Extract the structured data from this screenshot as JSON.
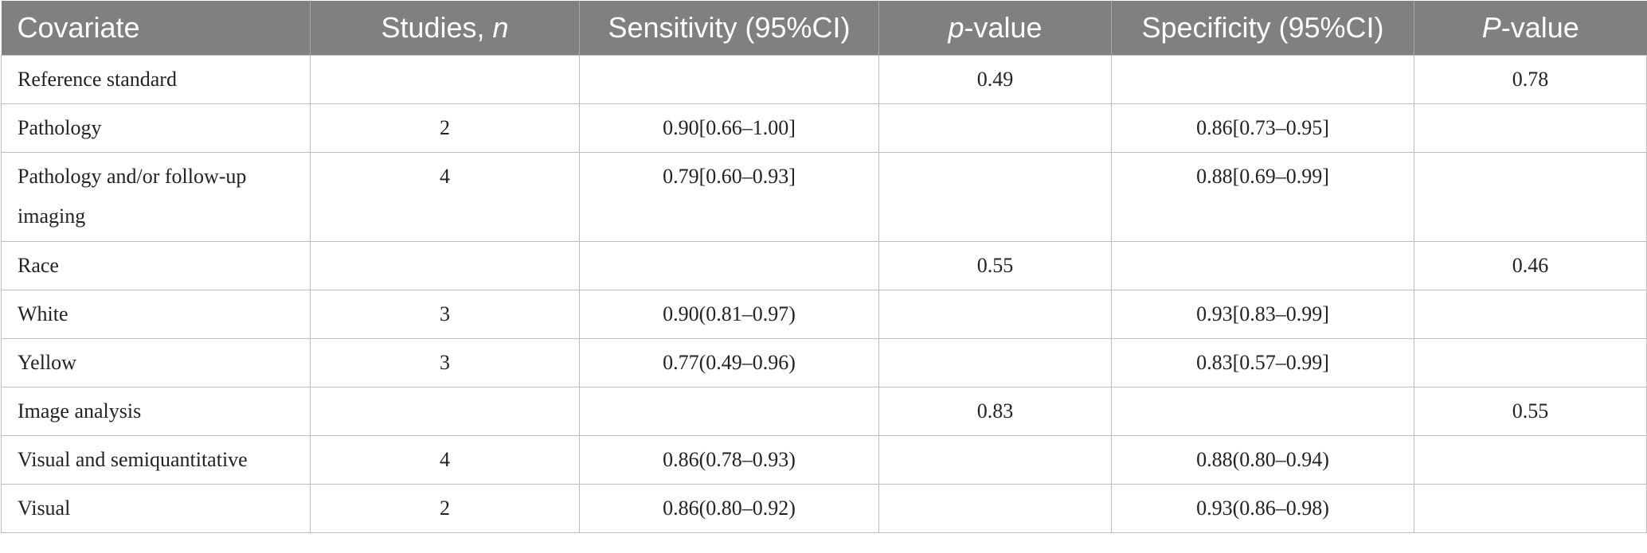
{
  "table": {
    "headers": [
      {
        "text": "Covariate",
        "italic": ""
      },
      {
        "text": "Studies, ",
        "italic": "n"
      },
      {
        "text": "Sensitivity (95%CI)",
        "italic": ""
      },
      {
        "pre": "",
        "italic": "p",
        "text": "-value"
      },
      {
        "text": "Specificity (95%CI)",
        "italic": ""
      },
      {
        "pre": "",
        "italic": "P",
        "text": "-value"
      }
    ],
    "rows": [
      [
        "Reference standard",
        "",
        "",
        "0.49",
        "",
        "0.78"
      ],
      [
        "Pathology",
        "2",
        "0.90[0.66–1.00]",
        "",
        "0.86[0.73–0.95]",
        ""
      ],
      [
        "Pathology and/or follow-up imaging",
        "4",
        "0.79[0.60–0.93]",
        "",
        "0.88[0.69–0.99]",
        ""
      ],
      [
        "Race",
        "",
        "",
        "0.55",
        "",
        "0.46"
      ],
      [
        "White",
        "3",
        "0.90(0.81–0.97)",
        "",
        "0.93[0.83–0.99]",
        ""
      ],
      [
        "Yellow",
        "3",
        "0.77(0.49–0.96)",
        "",
        "0.83[0.57–0.99]",
        ""
      ],
      [
        "Image analysis",
        "",
        "",
        "0.83",
        "",
        "0.55"
      ],
      [
        "Visual and semiquantitative",
        "4",
        "0.86(0.78–0.93)",
        "",
        "0.88(0.80–0.94)",
        ""
      ],
      [
        "Visual",
        "2",
        "0.86(0.80–0.92)",
        "",
        "0.93(0.86–0.98)",
        ""
      ]
    ]
  }
}
